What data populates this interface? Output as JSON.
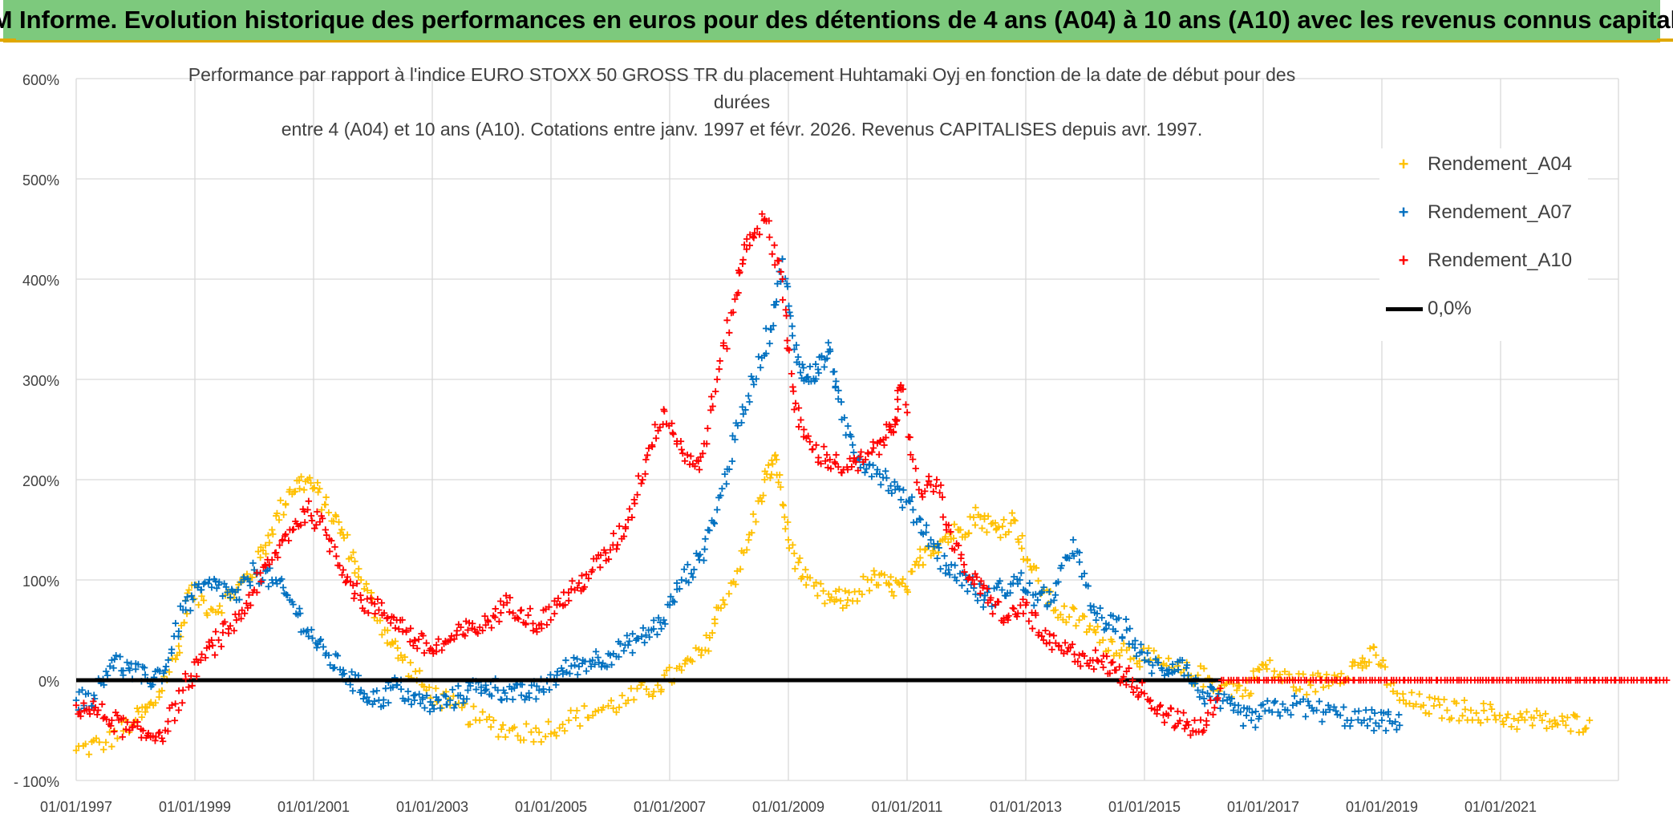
{
  "header": {
    "banner": "ADAM Informe. Evolution historique des performances en euros pour des détentions de 4 ans (A04) à 10 ans (A10) avec les revenus connus capitalisés"
  },
  "chart_data": {
    "type": "scatter",
    "title_line1": "Performance  par rapport à l'indice EURO STOXX 50 GROSS TR  du placement Huhtamaki Oyj en fonction de la date de début pour des durées",
    "title_line2": "entre 4 (A04) et 10 ans (A10). Cotations entre janv. 1997 et févr. 2026. Revenus CAPITALISES depuis avr. 1997.",
    "xlabel": "",
    "ylabel": "",
    "x_range": [
      1997.0,
      2023.9
    ],
    "ylim": [
      -100,
      600
    ],
    "y_ticks": [
      -100,
      0,
      100,
      200,
      300,
      400,
      500,
      600
    ],
    "y_tick_labels": [
      "- 100%",
      "0%",
      "100%",
      "200%",
      "300%",
      "400%",
      "500%",
      "600%"
    ],
    "x_ticks": [
      1997,
      1999,
      2001,
      2003,
      2005,
      2007,
      2009,
      2011,
      2013,
      2015,
      2017,
      2019,
      2021
    ],
    "x_tick_labels": [
      "01/01/1997",
      "01/01/1999",
      "01/01/2001",
      "01/01/2003",
      "01/01/2005",
      "01/01/2007",
      "01/01/2009",
      "01/01/2011",
      "01/01/2013",
      "01/01/2015",
      "01/01/2017",
      "01/01/2019",
      "01/01/2021"
    ],
    "grid": true,
    "legend_position": "top-right",
    "zero_line_label": "0,0%",
    "series": [
      {
        "name": "Rendement_A04",
        "color": "#ffc000",
        "marker": "+",
        "points": [
          [
            1997.0,
            -70
          ],
          [
            1997.5,
            -62
          ],
          [
            1998.0,
            -40
          ],
          [
            1998.3,
            -25
          ],
          [
            1998.7,
            25
          ],
          [
            1998.9,
            90
          ],
          [
            1999.3,
            70
          ],
          [
            1999.7,
            90
          ],
          [
            2000.0,
            110
          ],
          [
            2000.3,
            150
          ],
          [
            2000.6,
            190
          ],
          [
            2000.9,
            200
          ],
          [
            2001.2,
            175
          ],
          [
            2001.5,
            145
          ],
          [
            2001.8,
            100
          ],
          [
            2002.2,
            50
          ],
          [
            2002.5,
            20
          ],
          [
            2002.9,
            -10
          ],
          [
            2003.3,
            -25
          ],
          [
            2003.8,
            -40
          ],
          [
            2004.3,
            -50
          ],
          [
            2004.8,
            -52
          ],
          [
            2005.3,
            -40
          ],
          [
            2005.8,
            -30
          ],
          [
            2006.3,
            -20
          ],
          [
            2006.8,
            -5
          ],
          [
            2007.2,
            10
          ],
          [
            2007.6,
            30
          ],
          [
            2007.9,
            80
          ],
          [
            2008.3,
            130
          ],
          [
            2008.6,
            200
          ],
          [
            2008.8,
            220
          ],
          [
            2009.0,
            140
          ],
          [
            2009.3,
            95
          ],
          [
            2009.7,
            80
          ],
          [
            2010.0,
            80
          ],
          [
            2010.4,
            100
          ],
          [
            2010.7,
            95
          ],
          [
            2011.0,
            90
          ],
          [
            2011.3,
            130
          ],
          [
            2011.6,
            140
          ],
          [
            2011.9,
            150
          ],
          [
            2012.2,
            165
          ],
          [
            2012.5,
            150
          ],
          [
            2012.8,
            160
          ],
          [
            2013.1,
            110
          ],
          [
            2013.5,
            70
          ],
          [
            2013.9,
            60
          ],
          [
            2014.3,
            40
          ],
          [
            2014.7,
            30
          ],
          [
            2015.1,
            20
          ],
          [
            2015.5,
            10
          ],
          [
            2015.9,
            5
          ],
          [
            2016.3,
            -5
          ],
          [
            2016.7,
            -10
          ],
          [
            2017.0,
            15
          ],
          [
            2017.4,
            0
          ],
          [
            2017.8,
            -5
          ],
          [
            2018.2,
            5
          ],
          [
            2018.6,
            15
          ],
          [
            2018.9,
            25
          ],
          [
            2019.3,
            -20
          ],
          [
            2019.7,
            -25
          ],
          [
            2020.1,
            -30
          ],
          [
            2020.5,
            -30
          ],
          [
            2020.9,
            -35
          ],
          [
            2021.3,
            -40
          ],
          [
            2021.7,
            -40
          ],
          [
            2022.1,
            -45
          ],
          [
            2022.5,
            -40
          ]
        ]
      },
      {
        "name": "Rendement_A07",
        "color": "#0070c0",
        "marker": "+",
        "points": [
          [
            1997.0,
            -20
          ],
          [
            1997.3,
            -15
          ],
          [
            1997.6,
            20
          ],
          [
            1997.9,
            10
          ],
          [
            1998.2,
            0
          ],
          [
            1998.5,
            10
          ],
          [
            1998.8,
            70
          ],
          [
            1999.1,
            90
          ],
          [
            1999.4,
            95
          ],
          [
            1999.7,
            80
          ],
          [
            2000.0,
            110
          ],
          [
            2000.3,
            100
          ],
          [
            2000.6,
            80
          ],
          [
            2000.9,
            50
          ],
          [
            2001.2,
            25
          ],
          [
            2001.5,
            10
          ],
          [
            2001.8,
            -10
          ],
          [
            2002.1,
            -20
          ],
          [
            2002.4,
            -5
          ],
          [
            2002.7,
            -20
          ],
          [
            2003.0,
            -25
          ],
          [
            2003.3,
            -20
          ],
          [
            2003.6,
            -10
          ],
          [
            2003.9,
            -5
          ],
          [
            2004.2,
            -10
          ],
          [
            2004.5,
            -15
          ],
          [
            2004.8,
            -10
          ],
          [
            2005.1,
            5
          ],
          [
            2005.4,
            15
          ],
          [
            2005.7,
            20
          ],
          [
            2006.0,
            25
          ],
          [
            2006.3,
            35
          ],
          [
            2006.6,
            45
          ],
          [
            2006.9,
            60
          ],
          [
            2007.2,
            100
          ],
          [
            2007.5,
            120
          ],
          [
            2007.8,
            170
          ],
          [
            2008.1,
            240
          ],
          [
            2008.4,
            300
          ],
          [
            2008.7,
            350
          ],
          [
            2008.9,
            420
          ],
          [
            2009.1,
            330
          ],
          [
            2009.3,
            300
          ],
          [
            2009.5,
            310
          ],
          [
            2009.7,
            330
          ],
          [
            2009.9,
            260
          ],
          [
            2010.2,
            220
          ],
          [
            2010.5,
            210
          ],
          [
            2010.8,
            190
          ],
          [
            2011.1,
            170
          ],
          [
            2011.4,
            140
          ],
          [
            2011.7,
            110
          ],
          [
            2012.0,
            100
          ],
          [
            2012.3,
            80
          ],
          [
            2012.6,
            90
          ],
          [
            2012.9,
            100
          ],
          [
            2013.2,
            80
          ],
          [
            2013.5,
            85
          ],
          [
            2013.8,
            140
          ],
          [
            2014.1,
            70
          ],
          [
            2014.4,
            55
          ],
          [
            2014.7,
            50
          ],
          [
            2015.0,
            20
          ],
          [
            2015.3,
            10
          ],
          [
            2015.6,
            20
          ],
          [
            2015.9,
            -10
          ],
          [
            2016.2,
            -20
          ],
          [
            2016.5,
            -30
          ],
          [
            2016.8,
            -40
          ],
          [
            2017.1,
            -30
          ],
          [
            2017.5,
            -25
          ],
          [
            2017.9,
            -30
          ],
          [
            2018.3,
            -35
          ],
          [
            2018.7,
            -40
          ],
          [
            2019.0,
            -40
          ],
          [
            2019.3,
            -45
          ]
        ]
      },
      {
        "name": "Rendement_A10",
        "color": "#ff0000",
        "marker": "+",
        "points": [
          [
            1997.0,
            -25
          ],
          [
            1997.3,
            -30
          ],
          [
            1997.6,
            -40
          ],
          [
            1997.9,
            -50
          ],
          [
            1998.2,
            -55
          ],
          [
            1998.5,
            -50
          ],
          [
            1998.8,
            -10
          ],
          [
            1999.1,
            20
          ],
          [
            1999.4,
            40
          ],
          [
            1999.7,
            60
          ],
          [
            2000.0,
            90
          ],
          [
            2000.3,
            120
          ],
          [
            2000.6,
            150
          ],
          [
            2000.9,
            170
          ],
          [
            2001.2,
            150
          ],
          [
            2001.5,
            110
          ],
          [
            2001.8,
            80
          ],
          [
            2002.1,
            70
          ],
          [
            2002.4,
            60
          ],
          [
            2002.7,
            40
          ],
          [
            2003.0,
            30
          ],
          [
            2003.3,
            40
          ],
          [
            2003.6,
            50
          ],
          [
            2003.9,
            55
          ],
          [
            2004.2,
            75
          ],
          [
            2004.5,
            70
          ],
          [
            2004.8,
            55
          ],
          [
            2005.1,
            75
          ],
          [
            2005.4,
            90
          ],
          [
            2005.7,
            110
          ],
          [
            2006.0,
            130
          ],
          [
            2006.3,
            160
          ],
          [
            2006.6,
            220
          ],
          [
            2006.9,
            270
          ],
          [
            2007.2,
            230
          ],
          [
            2007.5,
            210
          ],
          [
            2007.8,
            300
          ],
          [
            2008.1,
            380
          ],
          [
            2008.3,
            440
          ],
          [
            2008.6,
            460
          ],
          [
            2008.9,
            400
          ],
          [
            2009.1,
            270
          ],
          [
            2009.4,
            230
          ],
          [
            2009.7,
            220
          ],
          [
            2010.0,
            210
          ],
          [
            2010.3,
            220
          ],
          [
            2010.6,
            240
          ],
          [
            2010.8,
            260
          ],
          [
            2010.9,
            290
          ],
          [
            2011.2,
            190
          ],
          [
            2011.5,
            200
          ],
          [
            2011.8,
            130
          ],
          [
            2012.1,
            100
          ],
          [
            2012.4,
            80
          ],
          [
            2012.7,
            60
          ],
          [
            2013.0,
            75
          ],
          [
            2013.3,
            40
          ],
          [
            2013.6,
            30
          ],
          [
            2013.9,
            25
          ],
          [
            2014.2,
            20
          ],
          [
            2014.5,
            10
          ],
          [
            2014.8,
            0
          ],
          [
            2015.1,
            -20
          ],
          [
            2015.4,
            -35
          ],
          [
            2015.7,
            -45
          ],
          [
            2016.0,
            -50
          ],
          [
            2016.3,
            0
          ],
          [
            2016.8,
            0
          ],
          [
            2017.3,
            0
          ],
          [
            2017.8,
            0
          ],
          [
            2018.3,
            0
          ],
          [
            2018.8,
            0
          ],
          [
            2019.3,
            0
          ],
          [
            2019.8,
            0
          ],
          [
            2020.3,
            0
          ],
          [
            2020.8,
            0
          ],
          [
            2021.3,
            0
          ],
          [
            2021.8,
            0
          ],
          [
            2022.3,
            0
          ],
          [
            2022.8,
            0
          ],
          [
            2023.3,
            0
          ],
          [
            2023.8,
            0
          ]
        ]
      },
      {
        "name": "0,0%",
        "color": "#000000",
        "type": "line",
        "points": [
          [
            1997.0,
            0
          ],
          [
            2016.3,
            0
          ]
        ]
      }
    ]
  }
}
